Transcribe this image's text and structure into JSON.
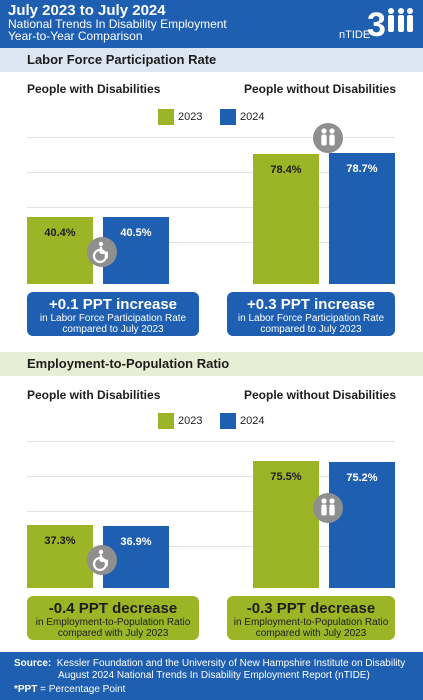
{
  "header": {
    "title": "July 2023 to July 2024",
    "subtitle1": "National Trends In Disability Employment",
    "subtitle2": "Year-to-Year Comparison",
    "logo_text": "nTIDE",
    "logo_number": "3"
  },
  "colors": {
    "blue": "#1f5fb2",
    "green": "#9cb526",
    "icon_gray": "#8f8f8f"
  },
  "sections": [
    {
      "title": "Labor Force Participation Rate",
      "groups": [
        {
          "title": "People with Disabilities",
          "icon": "wheelchair-icon",
          "callout": {
            "headline": "+0.1 PPT  increase",
            "line1": "in Labor Force Participation Rate",
            "line2": "compared to July 2023",
            "color": "blue"
          }
        },
        {
          "title": "People without Disabilities",
          "icon": "people-icon",
          "callout": {
            "headline": "+0.3 PPT  increase",
            "line1": "in Labor Force Participation Rate",
            "line2": "compared to July 2023",
            "color": "blue"
          }
        }
      ],
      "legend": [
        "2023",
        "2024"
      ]
    },
    {
      "title": "Employment-to-Population Ratio",
      "groups": [
        {
          "title": "People with Disabilities",
          "icon": "wheelchair-icon",
          "callout": {
            "headline": "-0.4 PPT  decrease",
            "line1": "in Employment-to-Population Ratio",
            "line2": "compared with July 2023",
            "color": "green"
          }
        },
        {
          "title": "People without Disabilities",
          "icon": "people-icon",
          "callout": {
            "headline": "-0.3 PPT  decrease",
            "line1": "in Employment-to-Population Ratio",
            "line2": "compared with July 2023",
            "color": "green"
          }
        }
      ],
      "legend": [
        "2023",
        "2024"
      ]
    }
  ],
  "chart_data": [
    {
      "type": "bar",
      "title": "Labor Force Participation Rate",
      "categories": [
        "People with Disabilities",
        "People without Disabilities"
      ],
      "series": [
        {
          "name": "2023",
          "values": [
            40.4,
            78.4
          ],
          "labels": [
            "40.4%",
            "78.4%"
          ]
        },
        {
          "name": "2024",
          "values": [
            40.5,
            78.7
          ],
          "labels": [
            "40.5%",
            "78.7%"
          ]
        }
      ],
      "ylim": [
        0,
        100
      ],
      "legend": "top-center"
    },
    {
      "type": "bar",
      "title": "Employment-to-Population Ratio",
      "categories": [
        "People with Disabilities",
        "People without Disabilities"
      ],
      "series": [
        {
          "name": "2023",
          "values": [
            37.3,
            75.5
          ],
          "labels": [
            "37.3%",
            "75.5%"
          ]
        },
        {
          "name": "2024",
          "values": [
            36.9,
            75.2
          ],
          "labels": [
            "36.9%",
            "75.2%"
          ]
        }
      ],
      "ylim": [
        0,
        100
      ],
      "legend": "top-center"
    }
  ],
  "footer": {
    "source_label": "Source:",
    "source_line1": "Kessler Foundation and the University of New Hampshire Institute on Disability",
    "source_line2": "August 2024 National Trends In Disability Employment Report (nTIDE)",
    "ppt_label": "*PPT",
    "ppt_text": " = Percentage Point"
  }
}
